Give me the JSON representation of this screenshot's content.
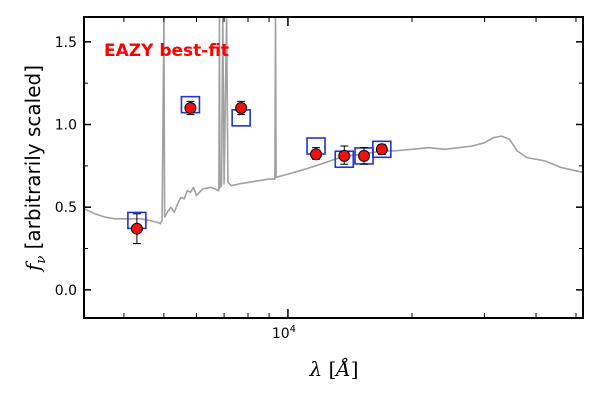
{
  "chart_data": {
    "type": "scatter",
    "annotation": {
      "text": "EAZY best-fit",
      "color": "#ff0000"
    },
    "xlabel": "λ [Å]",
    "ylabel": "f_ν [arbitrarily scaled]",
    "xlim": [
      3200,
      52000
    ],
    "ylim": [
      -0.17,
      1.65
    ],
    "xscale": "log",
    "grid": false,
    "x_tick_labels": [
      {
        "value": 10000,
        "label": "10",
        "sup": "4"
      }
    ],
    "y_ticks": [
      {
        "value": 0.0,
        "label": "0.0"
      },
      {
        "value": 0.5,
        "label": "0.5"
      },
      {
        "value": 1.0,
        "label": "1.0"
      },
      {
        "value": 1.5,
        "label": "1.5"
      }
    ],
    "series": [
      {
        "type": "scatter",
        "marker": "circle",
        "color": "#ee1111",
        "points": [
          {
            "x": 4300,
            "y": 0.37,
            "yerr_low": 0.09,
            "yerr_high": 0.09
          },
          {
            "x": 5800,
            "y": 1.1,
            "yerr_low": 0.04,
            "yerr_high": 0.04
          },
          {
            "x": 7700,
            "y": 1.1,
            "yerr_low": 0.04,
            "yerr_high": 0.04
          },
          {
            "x": 11700,
            "y": 0.82,
            "yerr_low": 0.03,
            "yerr_high": 0.04
          },
          {
            "x": 13700,
            "y": 0.81,
            "yerr_low": 0.05,
            "yerr_high": 0.06
          },
          {
            "x": 15300,
            "y": 0.81,
            "yerr_low": 0.05,
            "yerr_high": 0.05
          },
          {
            "x": 16900,
            "y": 0.85,
            "yerr_low": 0.03,
            "yerr_high": 0.03
          }
        ]
      },
      {
        "type": "scatter",
        "marker": "square-open",
        "color": "#2233cc",
        "points": [
          {
            "x": 4300,
            "y": 0.42
          },
          {
            "x": 5800,
            "y": 1.12
          },
          {
            "x": 7700,
            "y": 1.04
          },
          {
            "x": 11700,
            "y": 0.87
          },
          {
            "x": 13700,
            "y": 0.79
          },
          {
            "x": 15300,
            "y": 0.81
          },
          {
            "x": 16900,
            "y": 0.85
          }
        ]
      },
      {
        "type": "line",
        "color": "#a0a0a0",
        "points": [
          [
            3200,
            0.49
          ],
          [
            3400,
            0.46
          ],
          [
            3600,
            0.44
          ],
          [
            3800,
            0.43
          ],
          [
            4000,
            0.43
          ],
          [
            4200,
            0.43
          ],
          [
            4400,
            0.43
          ],
          [
            4600,
            0.42
          ],
          [
            4800,
            0.41
          ],
          [
            4900,
            0.4
          ],
          [
            4950,
            0.42
          ],
          [
            5000,
            1.65
          ],
          [
            5020,
            0.44
          ],
          [
            5100,
            0.47
          ],
          [
            5200,
            0.5
          ],
          [
            5300,
            0.47
          ],
          [
            5400,
            0.52
          ],
          [
            5500,
            0.56
          ],
          [
            5600,
            0.55
          ],
          [
            5700,
            0.6
          ],
          [
            5800,
            0.59
          ],
          [
            5900,
            0.62
          ],
          [
            6000,
            0.57
          ],
          [
            6200,
            0.61
          ],
          [
            6500,
            0.62
          ],
          [
            6800,
            0.6
          ],
          [
            6820,
            1.65
          ],
          [
            6840,
            0.62
          ],
          [
            6900,
            0.63
          ],
          [
            6950,
            1.65
          ],
          [
            7000,
            0.64
          ],
          [
            7100,
            1.65
          ],
          [
            7150,
            0.65
          ],
          [
            7300,
            0.63
          ],
          [
            7600,
            0.64
          ],
          [
            8000,
            0.65
          ],
          [
            8500,
            0.66
          ],
          [
            9000,
            0.67
          ],
          [
            9300,
            0.67
          ],
          [
            9330,
            1.65
          ],
          [
            9360,
            0.68
          ],
          [
            10000,
            0.7
          ],
          [
            11000,
            0.73
          ],
          [
            12000,
            0.76
          ],
          [
            13000,
            0.79
          ],
          [
            14000,
            0.81
          ],
          [
            15000,
            0.82
          ],
          [
            16000,
            0.83
          ],
          [
            17000,
            0.84
          ],
          [
            18000,
            0.84
          ],
          [
            20000,
            0.85
          ],
          [
            22000,
            0.86
          ],
          [
            24000,
            0.85
          ],
          [
            26000,
            0.86
          ],
          [
            28000,
            0.87
          ],
          [
            30000,
            0.89
          ],
          [
            31500,
            0.92
          ],
          [
            33000,
            0.93
          ],
          [
            34500,
            0.91
          ],
          [
            36000,
            0.84
          ],
          [
            38000,
            0.8
          ],
          [
            42000,
            0.78
          ],
          [
            46000,
            0.74
          ],
          [
            50000,
            0.72
          ],
          [
            52000,
            0.71
          ]
        ]
      }
    ]
  }
}
